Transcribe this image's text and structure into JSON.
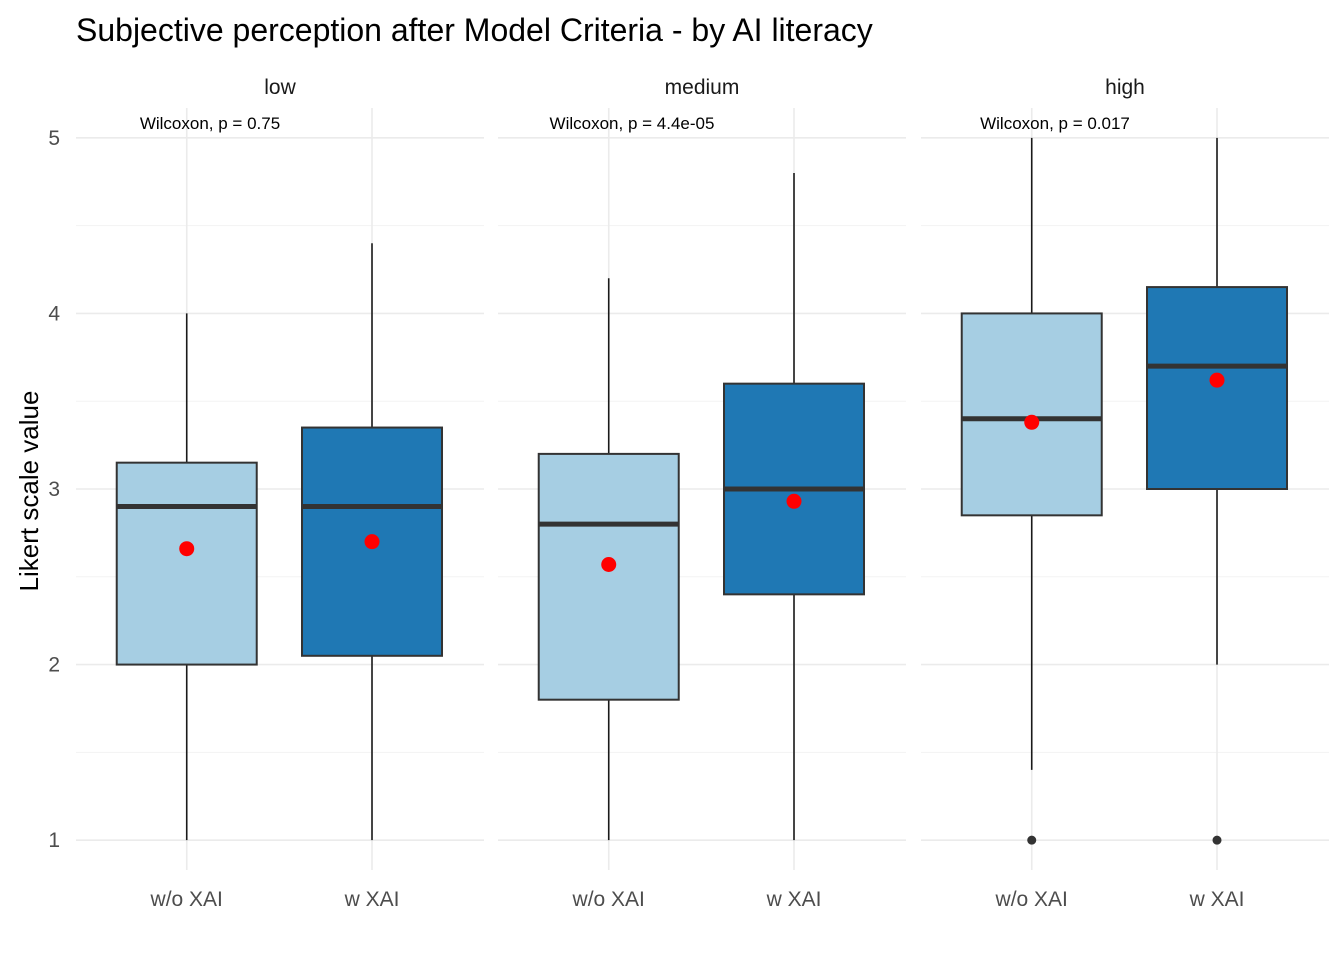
{
  "chart_data": {
    "type": "boxplot",
    "title": "Subjective perception after Model Criteria - by AI literacy",
    "xlabel": "",
    "ylabel": "Likert scale value",
    "ylim": [
      0.83,
      5.17
    ],
    "yticks": [
      1,
      2,
      3,
      4,
      5
    ],
    "ytick_labels": [
      "1",
      "2",
      "3",
      "4",
      "5"
    ],
    "grid": true,
    "legend": "none",
    "colors": {
      "w/o XAI": "#a6cee3",
      "w XAI": "#1f78b4",
      "mean_point": "#ff0000",
      "outlier": "#333333"
    },
    "facets": [
      {
        "name": "low",
        "annotation": "Wilcoxon, p = 0.75",
        "boxes": [
          {
            "category": "w/o XAI",
            "min": 1,
            "q1": 2,
            "median": 2.9,
            "q3": 3.15,
            "max": 4,
            "mean": 2.66,
            "outliers": []
          },
          {
            "category": "w XAI",
            "min": 1,
            "q1": 2.05,
            "median": 2.9,
            "q3": 3.35,
            "max": 4.4,
            "mean": 2.7,
            "outliers": []
          }
        ]
      },
      {
        "name": "medium",
        "annotation": "Wilcoxon, p = 4.4e-05",
        "boxes": [
          {
            "category": "w/o XAI",
            "min": 1,
            "q1": 1.8,
            "median": 2.8,
            "q3": 3.2,
            "max": 4.2,
            "mean": 2.57,
            "outliers": []
          },
          {
            "category": "w XAI",
            "min": 1,
            "q1": 2.4,
            "median": 3,
            "q3": 3.6,
            "max": 4.8,
            "mean": 2.93,
            "outliers": []
          }
        ]
      },
      {
        "name": "high",
        "annotation": "Wilcoxon, p = 0.017",
        "boxes": [
          {
            "category": "w/o XAI",
            "min": 1.4,
            "q1": 2.85,
            "median": 3.4,
            "q3": 4,
            "max": 5,
            "mean": 3.38,
            "outliers": [
              1
            ]
          },
          {
            "category": "w XAI",
            "min": 2,
            "q1": 3,
            "median": 3.7,
            "q3": 4.15,
            "max": 5,
            "mean": 3.62,
            "outliers": [
              1
            ]
          }
        ]
      }
    ]
  }
}
